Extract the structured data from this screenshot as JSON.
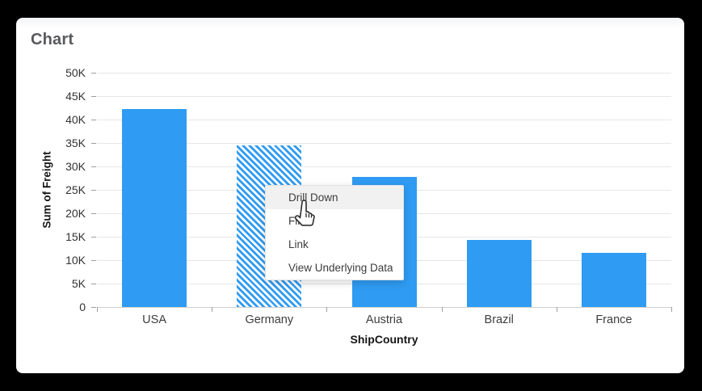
{
  "widget": {
    "title": "Chart"
  },
  "colors": {
    "bar": "#2F9BF2",
    "grid": "#e6e6e6",
    "axis": "#cfcfcf",
    "tick": "#9e9e9e",
    "menu_highlight": "#f1f1f1",
    "background_frame": "#000000",
    "card_background": "#ffffff"
  },
  "chart_data": {
    "type": "bar",
    "title": "Chart",
    "categories": [
      "USA",
      "Germany",
      "Austria",
      "Brazil",
      "France"
    ],
    "values": [
      42200,
      34500,
      27800,
      14300,
      11500
    ],
    "xlabel": "ShipCountry",
    "ylabel": "Sum of Freight",
    "ylim": [
      0,
      50000
    ],
    "ytick_labels": [
      "0",
      "5K",
      "10K",
      "15K",
      "20K",
      "25K",
      "30K",
      "35K",
      "40K",
      "45K",
      "50K"
    ],
    "grid": "horizontal",
    "legend": "none",
    "bar_color": "#2F9BF2",
    "selected_category": "Germany",
    "selected_style": "diagonal-hatch"
  },
  "context_menu": {
    "items": [
      {
        "label": "Drill Down",
        "highlighted": true
      },
      {
        "label": "Filter",
        "highlighted": false
      },
      {
        "label": "Link",
        "highlighted": false
      },
      {
        "label": "View Underlying Data",
        "highlighted": false
      }
    ]
  },
  "cursor": {
    "type": "hand-pointer"
  }
}
